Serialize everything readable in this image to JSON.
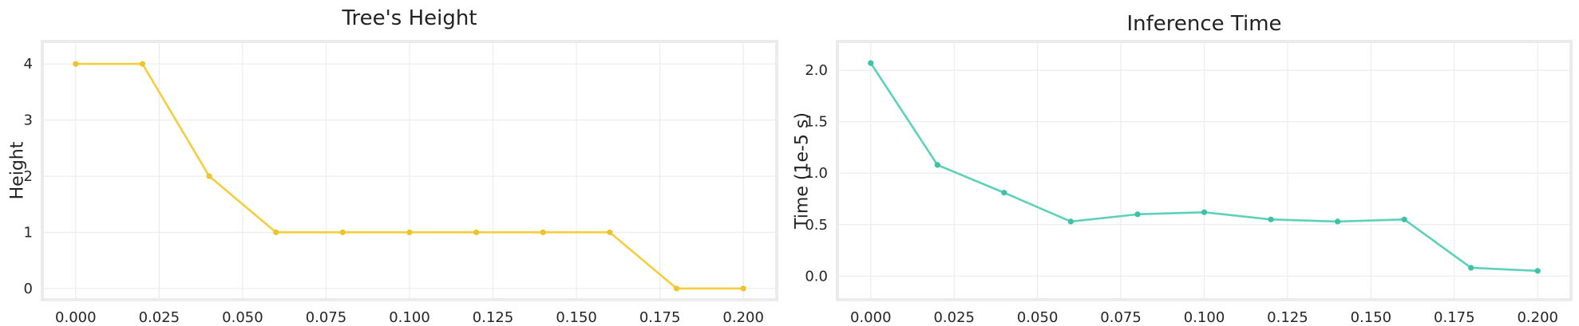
{
  "chart_data": [
    {
      "type": "line",
      "title": "Tree's Height",
      "xlabel": "",
      "ylabel": "Height",
      "xlim": [
        -0.01,
        0.21
      ],
      "ylim": [
        -0.2,
        4.4
      ],
      "xticks": [
        0.0,
        0.025,
        0.05,
        0.075,
        0.1,
        0.125,
        0.15,
        0.175,
        0.2
      ],
      "xtick_labels": [
        "0.000",
        "0.025",
        "0.050",
        "0.075",
        "0.100",
        "0.125",
        "0.150",
        "0.175",
        "0.200"
      ],
      "yticks": [
        0,
        1,
        2,
        3,
        4
      ],
      "ytick_labels": [
        "0",
        "1",
        "2",
        "3",
        "4"
      ],
      "grid": true,
      "color": "#f5cd3d",
      "marker_color": "#eec42c",
      "x": [
        0.0,
        0.02,
        0.04,
        0.06,
        0.08,
        0.1,
        0.12,
        0.14,
        0.16,
        0.18,
        0.2
      ],
      "y": [
        4,
        4,
        2,
        1,
        1,
        1,
        1,
        1,
        1,
        0,
        0
      ]
    },
    {
      "type": "line",
      "title": "Inference Time",
      "xlabel": "",
      "ylabel": "Time (1e-5 s)",
      "xlim": [
        -0.01,
        0.21
      ],
      "ylim": [
        -0.23,
        2.28
      ],
      "xticks": [
        0.0,
        0.025,
        0.05,
        0.075,
        0.1,
        0.125,
        0.15,
        0.175,
        0.2
      ],
      "xtick_labels": [
        "0.000",
        "0.025",
        "0.050",
        "0.075",
        "0.100",
        "0.125",
        "0.150",
        "0.175",
        "0.200"
      ],
      "yticks": [
        0.0,
        0.5,
        1.0,
        1.5,
        2.0
      ],
      "ytick_labels": [
        "0.0",
        "0.5",
        "1.0",
        "1.5",
        "2.0"
      ],
      "grid": true,
      "color": "#5dd1b9",
      "marker_color": "#3ec2a6",
      "x": [
        0.0,
        0.02,
        0.04,
        0.06,
        0.08,
        0.1,
        0.12,
        0.14,
        0.16,
        0.18,
        0.2
      ],
      "y": [
        2.07,
        1.08,
        0.81,
        0.53,
        0.6,
        0.62,
        0.55,
        0.53,
        0.55,
        0.08,
        0.05
      ]
    }
  ]
}
